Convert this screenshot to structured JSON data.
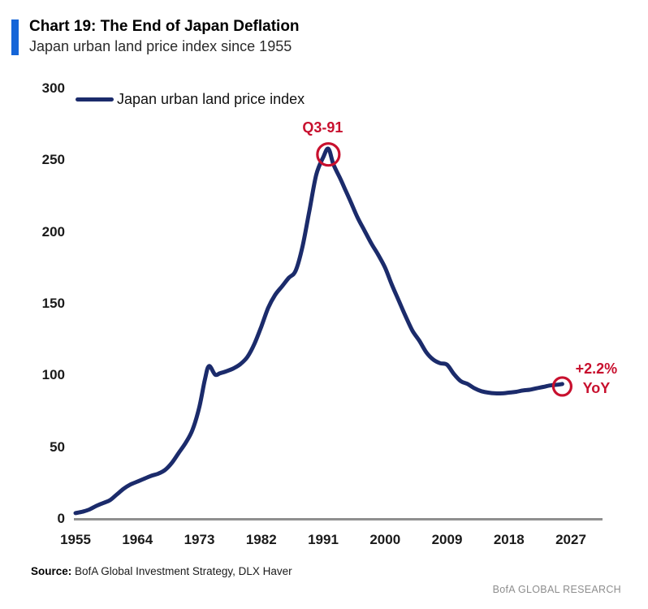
{
  "header": {
    "title": "Chart 19: The End of Japan Deflation",
    "subtitle": "Japan urban land price index since 1955"
  },
  "legend": {
    "label": "Japan urban land price index"
  },
  "annotations": {
    "peak_label": "Q3-91",
    "end_label_line1": "+2.2%",
    "end_label_line2": "YoY"
  },
  "source": {
    "prefix": "Source:",
    "text": " BofA Global Investment Strategy, DLX Haver"
  },
  "branding": "BofA GLOBAL RESEARCH",
  "colors": {
    "line": "#1b2b6b",
    "accent_red": "#c8102e",
    "title_bar": "#1565d8",
    "axis": "#8f8f8f"
  },
  "chart_data": {
    "type": "line",
    "title": "Japan urban land price index since 1955",
    "xlabel": "",
    "ylabel": "",
    "xlim": [
      1955,
      2027
    ],
    "ylim": [
      0,
      300
    ],
    "grid": false,
    "legend_position": "top-left",
    "yticks": [
      300,
      250,
      200,
      150,
      100,
      50,
      0
    ],
    "xticks": [
      1955,
      1964,
      1973,
      1982,
      1991,
      2000,
      2009,
      2018,
      2027
    ],
    "series": [
      {
        "name": "Japan urban land price index",
        "points": [
          [
            1955,
            4
          ],
          [
            1956,
            5
          ],
          [
            1957,
            6.5
          ],
          [
            1958,
            9
          ],
          [
            1959,
            11
          ],
          [
            1960,
            13
          ],
          [
            1961,
            17
          ],
          [
            1962,
            21
          ],
          [
            1963,
            24
          ],
          [
            1964,
            26
          ],
          [
            1965,
            28
          ],
          [
            1966,
            30
          ],
          [
            1967,
            31.5
          ],
          [
            1968,
            34
          ],
          [
            1969,
            39
          ],
          [
            1970,
            46
          ],
          [
            1971,
            53
          ],
          [
            1972,
            62
          ],
          [
            1973,
            78
          ],
          [
            1973.8,
            97
          ],
          [
            1974.4,
            106.5
          ],
          [
            1975.3,
            100.5
          ],
          [
            1976,
            101.5
          ],
          [
            1977,
            103
          ],
          [
            1978,
            105
          ],
          [
            1979,
            108
          ],
          [
            1980,
            113
          ],
          [
            1981,
            122
          ],
          [
            1982,
            134
          ],
          [
            1983,
            147
          ],
          [
            1984,
            156
          ],
          [
            1985,
            162
          ],
          [
            1986,
            168
          ],
          [
            1987,
            173
          ],
          [
            1988,
            190
          ],
          [
            1989,
            215
          ],
          [
            1990,
            240
          ],
          [
            1991,
            252
          ],
          [
            1991.75,
            258
          ],
          [
            1992.5,
            247
          ],
          [
            1993.5,
            237
          ],
          [
            1994.25,
            229
          ],
          [
            1995,
            221
          ],
          [
            1996,
            210
          ],
          [
            1997,
            201
          ],
          [
            1998,
            192
          ],
          [
            1999,
            184
          ],
          [
            2000,
            175
          ],
          [
            2001,
            163
          ],
          [
            2002,
            152
          ],
          [
            2003,
            141
          ],
          [
            2004,
            131
          ],
          [
            2005,
            124
          ],
          [
            2006,
            116
          ],
          [
            2007,
            111
          ],
          [
            2008,
            108.5
          ],
          [
            2009,
            107.5
          ],
          [
            2010,
            101
          ],
          [
            2011,
            96
          ],
          [
            2012,
            94
          ],
          [
            2013,
            91
          ],
          [
            2014,
            89
          ],
          [
            2015,
            88
          ],
          [
            2016,
            87.5
          ],
          [
            2017,
            87.5
          ],
          [
            2018,
            88
          ],
          [
            2019,
            88.5
          ],
          [
            2020,
            89.5
          ],
          [
            2021,
            90
          ],
          [
            2022,
            91
          ],
          [
            2023,
            92
          ],
          [
            2024,
            93
          ],
          [
            2025,
            93.5
          ],
          [
            2025.75,
            94
          ]
        ]
      }
    ],
    "peak_annotation": {
      "x": 1991.75,
      "y": 258,
      "label": "Q3-91"
    },
    "end_annotation": {
      "x": 2025.75,
      "y": 94,
      "label": "+2.2% YoY"
    }
  }
}
